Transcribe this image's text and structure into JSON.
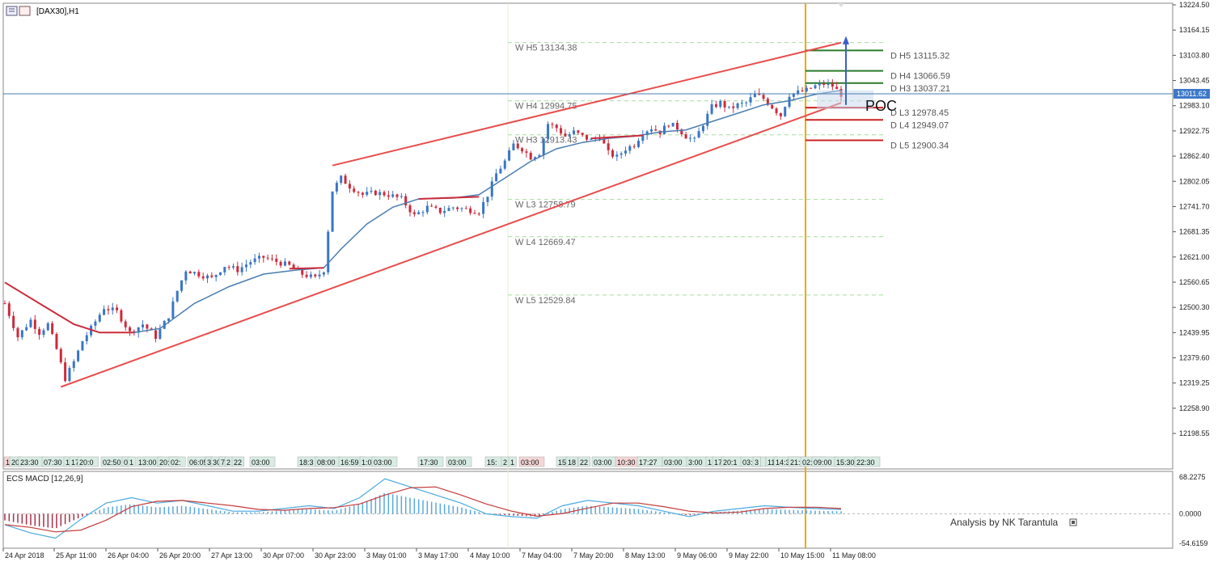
{
  "window": {
    "symbol_label": "[DAX30],H1",
    "current_price": "13011.62",
    "credit": "Analysis by NK Tarantula",
    "poc_label": "POC"
  },
  "colors": {
    "bull": "#3a76c4",
    "bear": "#cc2b3b",
    "ma": "#4a7db0",
    "channel": "#e84c4c",
    "weekly_lvl": "#a9dba0",
    "day_line": "#f0a800",
    "macd_signal": "#c43a3a",
    "macd_line": "#4aa9e0"
  },
  "price_axis": {
    "min": 12160,
    "max": 13224.5,
    "ticks": [
      "13224.50",
      "13164.15",
      "13103.80",
      "13043.45",
      "12983.10",
      "12922.75",
      "12862.40",
      "12802.05",
      "12741.70",
      "12681.35",
      "12621.00",
      "12560.65",
      "12500.30",
      "12439.95",
      "12379.60",
      "12319.25",
      "12258.90",
      "12198.55"
    ]
  },
  "time_axis": {
    "labels": [
      "24 Apr 2018",
      "25 Apr 11:00",
      "26 Apr 04:00",
      "26 Apr 20:00",
      "27 Apr 13:00",
      "30 Apr 07:00",
      "30 Apr 23:00",
      "3 May 01:00",
      "3 May 17:00",
      "4 May 10:00",
      "7 May 04:00",
      "7 May 20:00",
      "8 May 13:00",
      "9 May 06:00",
      "9 May 22:00",
      "10 May 15:00",
      "11 May 08:00"
    ]
  },
  "time_stamps": {
    "items": [
      "1",
      "20",
      "23:30",
      "07:30",
      "14",
      "17",
      "20:0",
      "02:50",
      "0",
      "1",
      "13:00",
      "20:0",
      "02:",
      "06:05",
      "3",
      "30",
      "7",
      "2",
      "22",
      "03:00",
      "18:3",
      "08:00",
      "16:59",
      "1:0",
      "03:00",
      "17:30",
      "03:00",
      "15:",
      "2",
      "1",
      "03:00",
      "15",
      "18",
      "22",
      "03:00",
      "10:30",
      "17:27",
      "03:00",
      "3:00",
      "1",
      "17",
      "20:1",
      "03:00",
      "3",
      "11",
      "14:30",
      "21:",
      "02:50",
      "09:00",
      "15:30",
      "22:30"
    ]
  },
  "weekly_levels": [
    {
      "label": "W  H5 13134.38",
      "value": 13134.38
    },
    {
      "label": "W  H4 12994.75",
      "value": 12994.75
    },
    {
      "label": "W  H3 12913.43",
      "value": 12913.43
    },
    {
      "label": "W  L3 12758.79",
      "value": 12758.79
    },
    {
      "label": "W  L4 12669.47",
      "value": 12669.47
    },
    {
      "label": "W  L5 12529.84",
      "value": 12529.84
    }
  ],
  "daily_levels": [
    {
      "label": "D  H5 13115.32",
      "value": 13115.32,
      "kind": "high"
    },
    {
      "label": "D  H4 13066.59",
      "value": 13066.59,
      "kind": "high"
    },
    {
      "label": "D  H3 13037.21",
      "value": 13037.21,
      "kind": "high"
    },
    {
      "label": "D  L3 12978.45",
      "value": 12978.45,
      "kind": "low"
    },
    {
      "label": "D  L4 12949.07",
      "value": 12949.07,
      "kind": "low"
    },
    {
      "label": "D  L5 12900.34",
      "value": 12900.34,
      "kind": "low"
    }
  ],
  "macd": {
    "label": "ECS MACD [12,26,9]",
    "ticks": [
      "68.2275",
      "0.0000",
      "-54.6159"
    ],
    "min": -54.6159,
    "max": 68.2275
  },
  "chart_data": {
    "type": "candlestick",
    "title": "[DAX30],H1",
    "ylim": [
      12160,
      13224.5
    ],
    "price_path": [
      [
        0,
        12510
      ],
      [
        3,
        12430
      ],
      [
        6,
        12470
      ],
      [
        8,
        12440
      ],
      [
        10,
        12460
      ],
      [
        12,
        12400
      ],
      [
        14,
        12330
      ],
      [
        16,
        12370
      ],
      [
        18,
        12420
      ],
      [
        20,
        12450
      ],
      [
        23,
        12500
      ],
      [
        26,
        12490
      ],
      [
        29,
        12440
      ],
      [
        32,
        12460
      ],
      [
        35,
        12430
      ],
      [
        38,
        12480
      ],
      [
        40,
        12540
      ],
      [
        42,
        12590
      ],
      [
        45,
        12580
      ],
      [
        48,
        12570
      ],
      [
        51,
        12600
      ],
      [
        54,
        12590
      ],
      [
        57,
        12610
      ],
      [
        60,
        12620
      ],
      [
        63,
        12610
      ],
      [
        66,
        12600
      ],
      [
        69,
        12580
      ],
      [
        72,
        12570
      ],
      [
        74,
        12590
      ],
      [
        76,
        12780
      ],
      [
        78,
        12810
      ],
      [
        80,
        12790
      ],
      [
        83,
        12770
      ],
      [
        86,
        12775
      ],
      [
        89,
        12770
      ],
      [
        92,
        12760
      ],
      [
        95,
        12720
      ],
      [
        98,
        12740
      ],
      [
        101,
        12730
      ],
      [
        104,
        12740
      ],
      [
        107,
        12735
      ],
      [
        110,
        12730
      ],
      [
        112,
        12770
      ],
      [
        114,
        12820
      ],
      [
        116,
        12850
      ],
      [
        118,
        12890
      ],
      [
        120,
        12880
      ],
      [
        122,
        12860
      ],
      [
        124,
        12870
      ],
      [
        126,
        12940
      ],
      [
        128,
        12930
      ],
      [
        130,
        12910
      ],
      [
        132,
        12920
      ],
      [
        134,
        12910
      ],
      [
        136,
        12900
      ],
      [
        138,
        12910
      ],
      [
        140,
        12870
      ],
      [
        142,
        12860
      ],
      [
        144,
        12880
      ],
      [
        146,
        12890
      ],
      [
        148,
        12920
      ],
      [
        150,
        12930
      ],
      [
        152,
        12920
      ],
      [
        154,
        12940
      ],
      [
        156,
        12930
      ],
      [
        158,
        12910
      ],
      [
        160,
        12900
      ],
      [
        162,
        12940
      ],
      [
        164,
        12980
      ],
      [
        166,
        12990
      ],
      [
        168,
        12975
      ],
      [
        170,
        12985
      ],
      [
        172,
        12990
      ],
      [
        174,
        13010
      ],
      [
        176,
        13000
      ],
      [
        178,
        12980
      ],
      [
        180,
        12960
      ],
      [
        182,
        13010
      ],
      [
        184,
        13015
      ],
      [
        186,
        13020
      ],
      [
        188,
        13030
      ],
      [
        190,
        13035
      ],
      [
        192,
        13030
      ],
      [
        194,
        13010
      ]
    ],
    "moving_average": [
      [
        0,
        12560
      ],
      [
        8,
        12510
      ],
      [
        16,
        12460
      ],
      [
        22,
        12440
      ],
      [
        30,
        12440
      ],
      [
        36,
        12450
      ],
      [
        44,
        12510
      ],
      [
        52,
        12550
      ],
      [
        60,
        12580
      ],
      [
        68,
        12590
      ],
      [
        74,
        12595
      ],
      [
        78,
        12640
      ],
      [
        84,
        12700
      ],
      [
        90,
        12740
      ],
      [
        96,
        12760
      ],
      [
        104,
        12762
      ],
      [
        110,
        12770
      ],
      [
        116,
        12810
      ],
      [
        122,
        12850
      ],
      [
        128,
        12880
      ],
      [
        134,
        12895
      ],
      [
        140,
        12905
      ],
      [
        146,
        12910
      ],
      [
        152,
        12920
      ],
      [
        158,
        12925
      ],
      [
        164,
        12945
      ],
      [
        170,
        12965
      ],
      [
        176,
        12985
      ],
      [
        182,
        12995
      ],
      [
        188,
        13010
      ],
      [
        194,
        13020
      ]
    ],
    "channel_upper": [
      [
        76,
        12840
      ],
      [
        194,
        13134
      ]
    ],
    "channel_lower": [
      [
        13,
        12310
      ],
      [
        194,
        12990
      ]
    ],
    "series": [
      {
        "name": "ECS MACD [12,26,9]",
        "values": [
          -20,
          -35,
          -45,
          -10,
          20,
          30,
          20,
          25,
          15,
          5,
          5,
          10,
          15,
          10,
          30,
          65,
          50,
          35,
          20,
          0,
          -5,
          -8,
          15,
          25,
          20,
          15,
          5,
          -5,
          5,
          10,
          15,
          12,
          10,
          8
        ]
      }
    ]
  }
}
